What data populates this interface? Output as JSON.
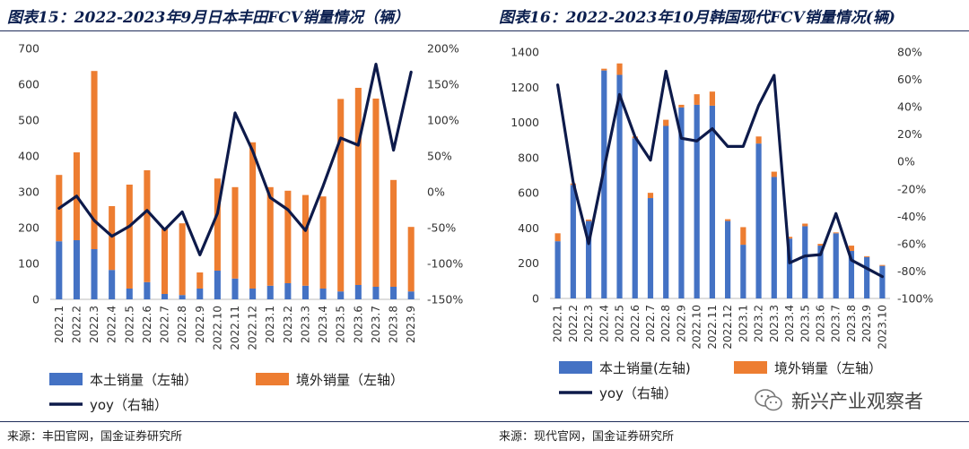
{
  "colors": {
    "domestic": "#4472c4",
    "overseas": "#ed7d31",
    "yoy": "#0d1a4a",
    "title": "#0b1f4f"
  },
  "left": {
    "title": "图表15：2022-2023年9月日本丰田FCV销量情况（辆）",
    "source": "来源：丰田官网，国金证券研究所"
  },
  "right": {
    "title": "图表16：2022-2023年10月韩国现代FCV销量情况(辆)",
    "source": "来源：现代官网，国金证券研究所"
  },
  "watermark": {
    "text": "新兴产业观察者",
    "icon": "wechat-icon"
  },
  "chart_data": [
    {
      "type": "bar",
      "stacked": true,
      "categories": [
        "2022.1",
        "2022.2",
        "2022.3",
        "2022.4",
        "2022.5",
        "2022.6",
        "2022.7",
        "2022.8",
        "2022.9",
        "2022.10",
        "2022.11",
        "2022.12",
        "2023.1",
        "2023.2",
        "2023.3",
        "2023.4",
        "2023.5",
        "2023.6",
        "2023.7",
        "2023.8",
        "2023.9"
      ],
      "series": [
        {
          "name": "本土销量（左轴）",
          "axis": "left",
          "kind": "bar",
          "values": [
            162,
            165,
            140,
            82,
            30,
            48,
            15,
            12,
            30,
            80,
            58,
            30,
            38,
            45,
            38,
            30,
            22,
            40,
            35,
            35,
            22
          ]
        },
        {
          "name": "境外销量（左轴）",
          "axis": "left",
          "kind": "bar",
          "values": [
            185,
            245,
            497,
            178,
            290,
            312,
            185,
            200,
            45,
            257,
            255,
            408,
            275,
            258,
            253,
            257,
            537,
            550,
            525,
            298,
            180
          ]
        },
        {
          "name": "yoy（右轴）",
          "axis": "right",
          "kind": "line",
          "values": [
            -23,
            -6,
            -40,
            -62,
            -48,
            -26,
            -53,
            -28,
            -88,
            -30,
            110,
            57,
            -8,
            -25,
            -54,
            8,
            75,
            65,
            178,
            58,
            167
          ]
        }
      ],
      "ylim_left": [
        0,
        700
      ],
      "yticks_left": [
        0,
        100,
        200,
        300,
        400,
        500,
        600,
        700
      ],
      "ylim_right": [
        -150,
        200
      ],
      "yticks_right": [
        -150,
        -100,
        -50,
        0,
        50,
        100,
        150,
        200
      ],
      "right_tick_labels": [
        "-150%",
        "-100%",
        "-50%",
        "0%",
        "50%",
        "100%",
        "150%",
        "200%"
      ],
      "legend": [
        "本土销量（左轴）",
        "境外销量（左轴）",
        "yoy（右轴）"
      ],
      "legend_position": "bottom"
    },
    {
      "type": "bar",
      "stacked": true,
      "categories": [
        "2022.1",
        "2022.2",
        "2022.3",
        "2022.4",
        "2022.5",
        "2022.6",
        "2022.7",
        "2022.8",
        "2022.9",
        "2022.10",
        "2022.11",
        "2022.12",
        "2023.1",
        "2023.2",
        "2023.3",
        "2023.4",
        "2023.5",
        "2023.6",
        "2023.7",
        "2023.8",
        "2023.9",
        "2023.10"
      ],
      "series": [
        {
          "name": "本土销量(左轴)",
          "axis": "left",
          "kind": "bar",
          "values": [
            325,
            645,
            440,
            1295,
            1270,
            910,
            570,
            980,
            1085,
            1100,
            1095,
            440,
            305,
            880,
            690,
            340,
            410,
            300,
            370,
            270,
            235,
            185
          ]
        },
        {
          "name": "境外销量（左轴）",
          "axis": "left",
          "kind": "bar",
          "values": [
            45,
            8,
            8,
            10,
            65,
            10,
            30,
            35,
            15,
            60,
            80,
            10,
            100,
            40,
            30,
            10,
            15,
            10,
            5,
            30,
            5,
            5
          ]
        },
        {
          "name": "yoy（右轴）",
          "axis": "right",
          "kind": "line",
          "values": [
            56,
            -15,
            -60,
            -5,
            49,
            18,
            1,
            66,
            17,
            15,
            24,
            11,
            11,
            41,
            63,
            -74,
            -69,
            -68,
            -38,
            -72,
            -78,
            -84
          ]
        }
      ],
      "ylim_left": [
        0,
        1400
      ],
      "yticks_left": [
        0,
        200,
        400,
        600,
        800,
        1000,
        1200,
        1400
      ],
      "ylim_right": [
        -100,
        80
      ],
      "yticks_right": [
        -100,
        -80,
        -60,
        -40,
        -20,
        0,
        20,
        40,
        60,
        80
      ],
      "right_tick_labels": [
        "-100%",
        "-80%",
        "-60%",
        "-40%",
        "-20%",
        "0%",
        "20%",
        "40%",
        "60%",
        "80%"
      ],
      "legend": [
        "本土销量(左轴)",
        "境外销量（左轴）",
        "yoy（右轴）"
      ],
      "legend_position": "bottom"
    }
  ]
}
